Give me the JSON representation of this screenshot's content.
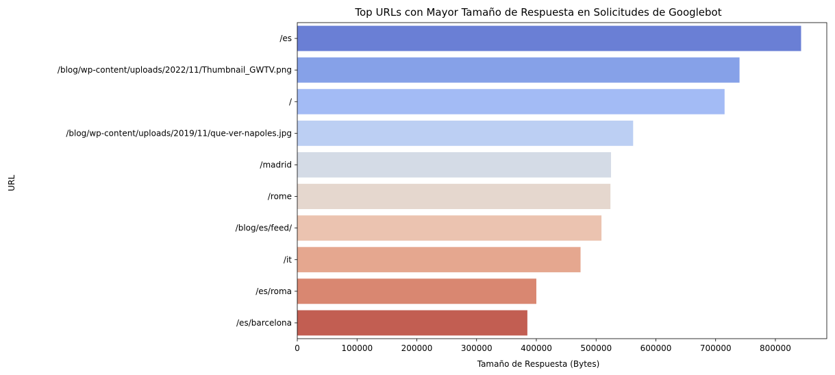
{
  "chart_data": {
    "type": "bar",
    "orientation": "horizontal",
    "title": "Top URLs con Mayor Tamaño de Respuesta en Solicitudes de Googlebot",
    "xlabel": "Tamaño de Respuesta (Bytes)",
    "ylabel": "URL",
    "xlim": [
      0,
      886000
    ],
    "xticks": [
      0,
      100000,
      200000,
      300000,
      400000,
      500000,
      600000,
      700000,
      800000
    ],
    "grid": false,
    "legend": "none",
    "categories": [
      "/es",
      "/blog/wp-content/uploads/2022/11/Thumbnail_GWTV.png",
      "/",
      "/blog/wp-content/uploads/2019/11/que-ver-napoles.jpg",
      "/madrid",
      "/rome",
      "/blog/es/feed/",
      "/it",
      "/es/roma",
      "/es/barcelona"
    ],
    "values": [
      843000,
      740000,
      715000,
      562000,
      525000,
      524000,
      509000,
      474000,
      400000,
      385000
    ],
    "colors": [
      "#6a7fd5",
      "#86a1e8",
      "#a3bbf5",
      "#bccff3",
      "#d4dbe6",
      "#e5d7ce",
      "#ebc3b0",
      "#e5a78f",
      "#d98771",
      "#c25e52"
    ]
  }
}
